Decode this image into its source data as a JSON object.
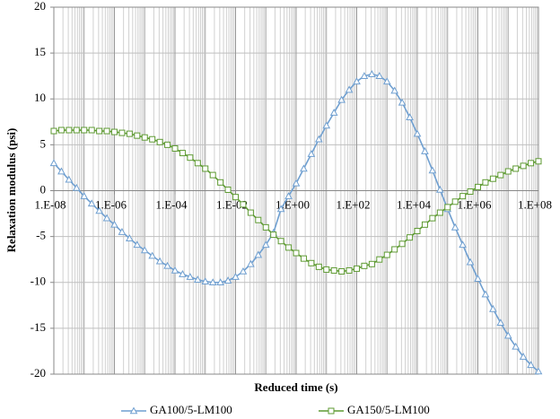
{
  "chart_data": {
    "type": "line",
    "x_label": "Reduced time (s)",
    "y_label": "Relaxation modulus (psi)",
    "log_x": true,
    "grid": true,
    "minor_grid": true,
    "legend": "bottom",
    "x": [
      1e-08,
      1.778e-08,
      3.162e-08,
      5.623e-08,
      1e-07,
      1.778e-07,
      3.162e-07,
      5.623e-07,
      1e-06,
      1.778e-06,
      3.162e-06,
      5.623e-06,
      1e-05,
      1.778e-05,
      3.162e-05,
      5.623e-05,
      0.0001,
      0.0001778,
      0.0003162,
      0.0005623,
      0.001,
      0.001778,
      0.003162,
      0.005623,
      0.01,
      0.01778,
      0.03162,
      0.05623,
      0.1,
      0.1778,
      0.3162,
      0.5623,
      1,
      1.778,
      3.162,
      5.623,
      10,
      17.78,
      31.62,
      56.23,
      100,
      177.8,
      316.2,
      562.3,
      1000,
      1778,
      3162,
      5623,
      10000.0,
      17780.0,
      31620.0,
      56230.0,
      100000.0,
      177800.0,
      316200.0,
      562300.0,
      1000000.0,
      1778000.0,
      3162000.0,
      5623000.0,
      10000000.0,
      17780000.0,
      31620000.0,
      56230000.0,
      100000000.0
    ],
    "series": [
      {
        "name": "GA100/5-LM100",
        "color": "#6f9fd0",
        "marker": "triangle",
        "values": [
          3.0,
          2.1,
          1.2,
          0.3,
          -0.6,
          -1.4,
          -2.2,
          -3.0,
          -3.7,
          -4.5,
          -5.2,
          -5.9,
          -6.5,
          -7.1,
          -7.7,
          -8.2,
          -8.7,
          -9.1,
          -9.4,
          -9.7,
          -9.9,
          -10.0,
          -10.0,
          -9.8,
          -9.4,
          -8.8,
          -8.0,
          -7.0,
          -5.9,
          -4.6,
          -2.0,
          -0.6,
          0.8,
          2.4,
          4.0,
          5.6,
          7.1,
          8.5,
          9.9,
          11.0,
          11.9,
          12.5,
          12.7,
          12.5,
          11.9,
          10.9,
          9.6,
          8.0,
          6.2,
          4.3,
          2.2,
          0.1,
          -2.0,
          -4.0,
          -5.9,
          -7.8,
          -9.6,
          -11.3,
          -12.9,
          -14.4,
          -15.8,
          -17.0,
          -18.1,
          -19.0,
          -19.7
        ]
      },
      {
        "name": "GA150/5-LM100",
        "color": "#5e9a32",
        "marker": "square",
        "values": [
          6.5,
          6.6,
          6.6,
          6.6,
          6.6,
          6.6,
          6.5,
          6.5,
          6.4,
          6.3,
          6.2,
          6.0,
          5.8,
          5.6,
          5.3,
          5.0,
          4.6,
          4.1,
          3.6,
          3.0,
          2.4,
          1.7,
          0.9,
          0.1,
          -0.7,
          -1.5,
          -2.4,
          -3.2,
          -4.0,
          -4.8,
          -5.5,
          -6.2,
          -6.8,
          -7.4,
          -7.9,
          -8.3,
          -8.6,
          -8.7,
          -8.8,
          -8.7,
          -8.5,
          -8.2,
          -8.0,
          -7.5,
          -7.0,
          -6.4,
          -5.8,
          -5.1,
          -4.4,
          -3.7,
          -3.0,
          -2.4,
          -1.8,
          -1.2,
          -0.6,
          -0.1,
          0.4,
          0.9,
          1.3,
          1.7,
          2.1,
          2.4,
          2.7,
          3.0,
          3.2
        ]
      }
    ],
    "xlim": [
      1e-08,
      100000000.0
    ],
    "xticks": [
      {
        "value": 1e-08,
        "label": "1.E-08"
      },
      {
        "value": 1e-06,
        "label": "1.E-06"
      },
      {
        "value": 0.0001,
        "label": "1.E-04"
      },
      {
        "value": 0.01,
        "label": "1.E-02"
      },
      {
        "value": 1,
        "label": "1.E+00"
      },
      {
        "value": 100,
        "label": "1.E+02"
      },
      {
        "value": 10000.0,
        "label": "1.E+04"
      },
      {
        "value": 1000000.0,
        "label": "1.E+06"
      },
      {
        "value": 100000000.0,
        "label": "1.E+08"
      }
    ],
    "ylim": [
      -20,
      20
    ],
    "yticks": [
      -20,
      -15,
      -10,
      -5,
      0,
      5,
      10,
      15,
      20
    ]
  }
}
